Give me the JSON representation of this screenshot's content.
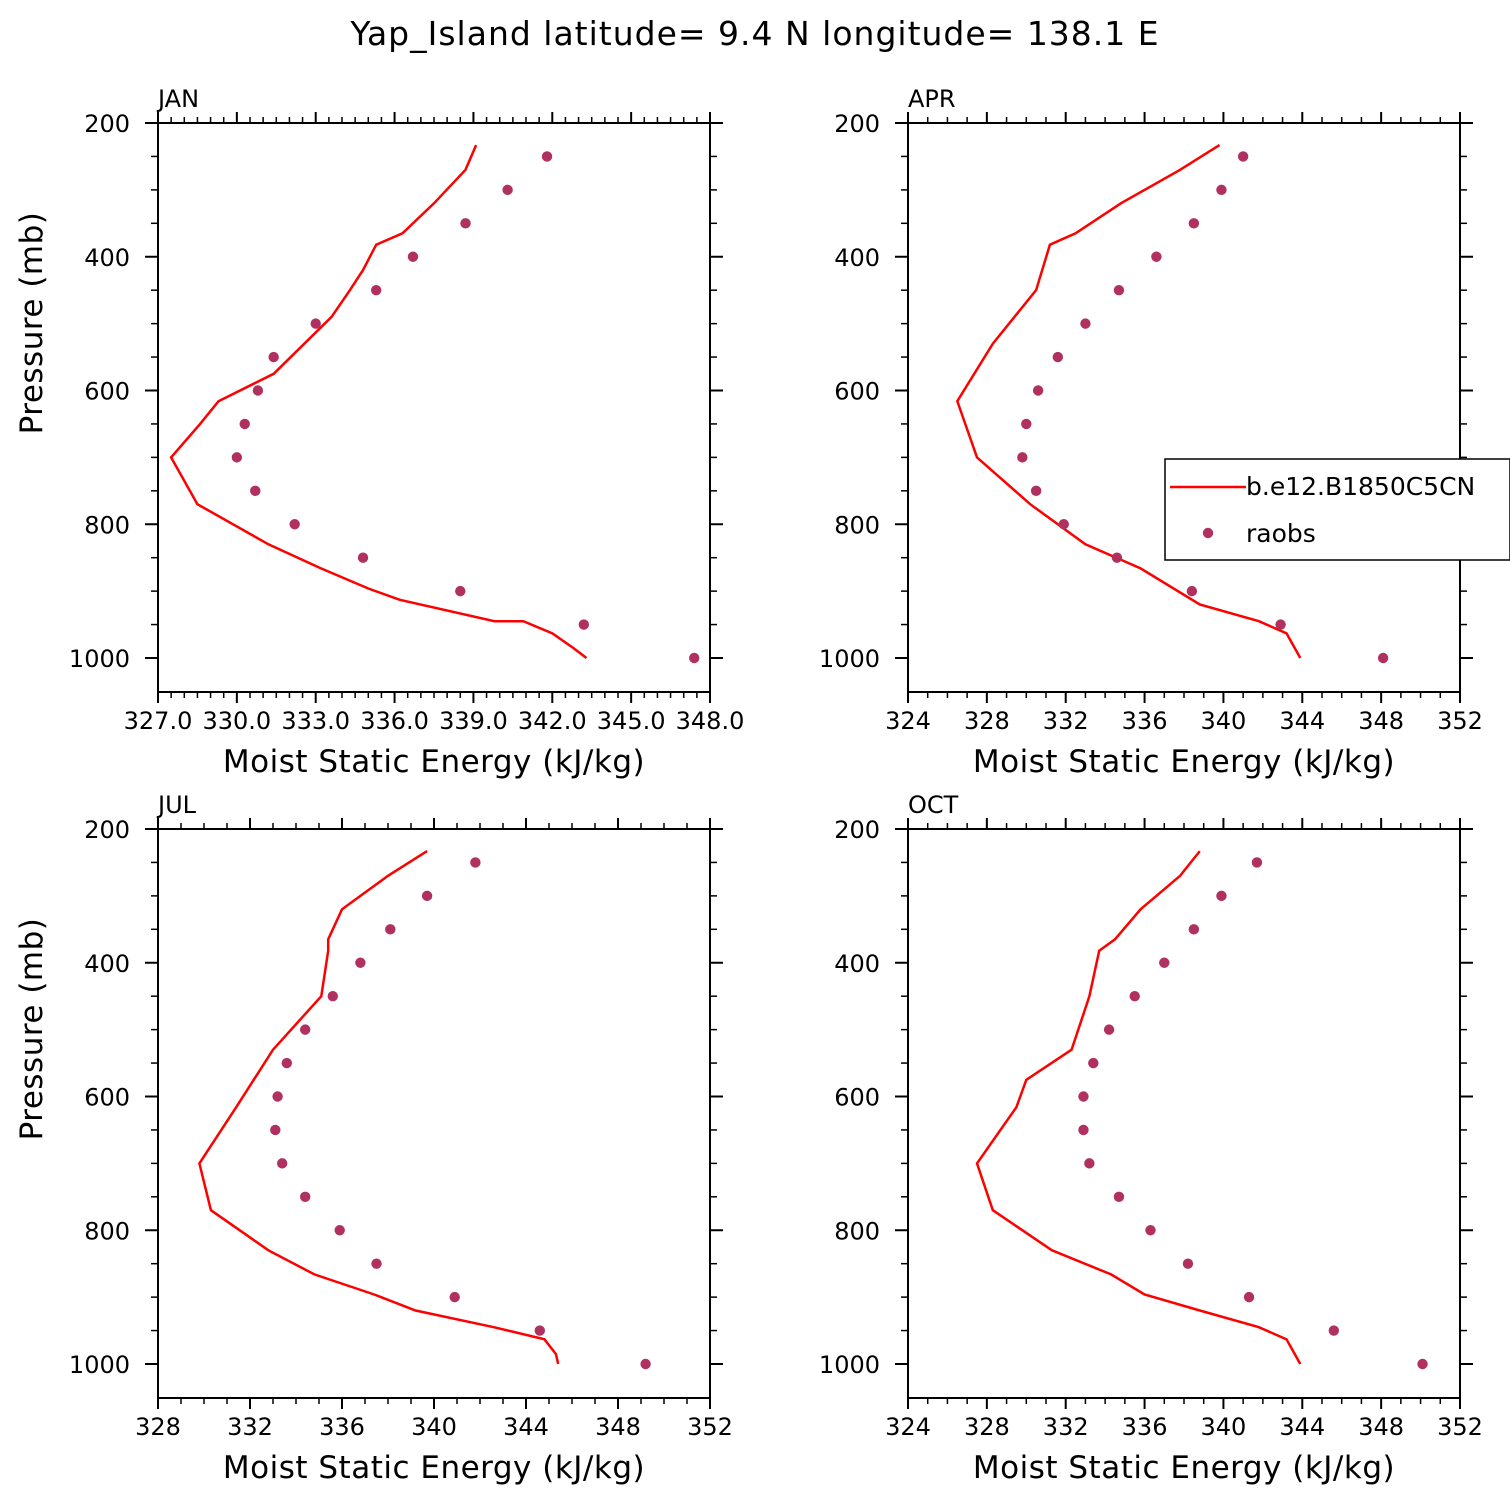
{
  "title": "Yap_Island  latitude= 9.4 N longitude= 138.1 E",
  "colors": {
    "model": "#ff0000",
    "obs": "#b03060"
  },
  "legend": {
    "model_label": "b.e12.B1850C5CN",
    "obs_label": "raobs"
  },
  "chart_data": [
    {
      "type": "line",
      "panel": "JAN",
      "xlabel": "Moist Static Energy (kJ/kg)",
      "ylabel": "Pressure (mb)",
      "xlim": [
        327.0,
        348.0
      ],
      "ylim": [
        200,
        1000
      ],
      "yscale": "inverted",
      "xticks": [
        327.0,
        330.0,
        333.0,
        336.0,
        339.0,
        342.0,
        345.0,
        348.0
      ],
      "xtick_labels": [
        "327.0",
        "330.0",
        "333.0",
        "336.0",
        "339.0",
        "342.0",
        "345.0",
        "348.0"
      ],
      "yticks": [
        200,
        400,
        600,
        800,
        1000
      ],
      "ytick_labels": [
        "200",
        "400",
        "600",
        "800",
        "1000"
      ],
      "series": [
        {
          "name": "b.e12.B1850C5CN",
          "kind": "line",
          "x": [
            339.1,
            338.7,
            337.5,
            336.3,
            335.3,
            334.8,
            334.3,
            333.6,
            331.4,
            329.3,
            328.6,
            327.5,
            328.5,
            331.2,
            333.2,
            335.0,
            336.2,
            339.8,
            340.9,
            342.0,
            342.8,
            343.3
          ],
          "y": [
            233,
            270,
            320,
            365,
            382,
            420,
            450,
            490,
            575,
            616,
            650,
            700,
            770,
            830,
            866,
            896,
            913,
            945,
            945,
            963,
            985,
            1000
          ]
        },
        {
          "name": "raobs",
          "kind": "scatter",
          "x": [
            341.8,
            340.3,
            338.7,
            336.7,
            335.3,
            333.0,
            331.4,
            330.8,
            330.3,
            330.0,
            330.7,
            332.2,
            334.8,
            338.5,
            343.2,
            347.4
          ],
          "y": [
            250,
            300,
            350,
            400,
            450,
            500,
            550,
            600,
            650,
            700,
            750,
            800,
            850,
            900,
            950,
            1000
          ]
        }
      ]
    },
    {
      "type": "line",
      "panel": "APR",
      "xlabel": "Moist Static Energy (kJ/kg)",
      "ylabel": "",
      "xlim": [
        324,
        352
      ],
      "ylim": [
        200,
        1000
      ],
      "yscale": "inverted",
      "xticks": [
        324,
        328,
        332,
        336,
        340,
        344,
        348,
        352
      ],
      "xtick_labels": [
        "324",
        "328",
        "332",
        "336",
        "340",
        "344",
        "348",
        "352"
      ],
      "yticks": [
        200,
        400,
        600,
        800,
        1000
      ],
      "ytick_labels": [
        "200",
        "400",
        "600",
        "800",
        "1000"
      ],
      "series": [
        {
          "name": "b.e12.B1850C5CN",
          "kind": "line",
          "x": [
            339.8,
            337.8,
            334.8,
            332.5,
            331.2,
            330.5,
            328.3,
            326.5,
            327.5,
            330.2,
            333.0,
            335.8,
            338.8,
            341.8,
            343.2,
            343.9
          ],
          "y": [
            233,
            270,
            320,
            365,
            382,
            450,
            530,
            616,
            700,
            770,
            830,
            866,
            920,
            945,
            963,
            1000
          ]
        },
        {
          "name": "raobs",
          "kind": "scatter",
          "x": [
            341.0,
            339.9,
            338.5,
            336.6,
            334.7,
            333.0,
            331.6,
            330.6,
            330.0,
            329.8,
            330.5,
            331.9,
            334.6,
            338.4,
            342.9,
            348.1
          ],
          "y": [
            250,
            300,
            350,
            400,
            450,
            500,
            550,
            600,
            650,
            700,
            750,
            800,
            850,
            900,
            950,
            1000
          ]
        }
      ]
    },
    {
      "type": "line",
      "panel": "JUL",
      "xlabel": "Moist Static Energy (kJ/kg)",
      "ylabel": "Pressure (mb)",
      "xlim": [
        328,
        352
      ],
      "ylim": [
        200,
        1000
      ],
      "yscale": "inverted",
      "xticks": [
        328,
        332,
        336,
        340,
        344,
        348,
        352
      ],
      "xtick_labels": [
        "328",
        "332",
        "336",
        "340",
        "344",
        "348",
        "352"
      ],
      "yticks": [
        200,
        400,
        600,
        800,
        1000
      ],
      "ytick_labels": [
        "200",
        "400",
        "600",
        "800",
        "1000"
      ],
      "series": [
        {
          "name": "b.e12.B1850C5CN",
          "kind": "line",
          "x": [
            339.7,
            338.0,
            336.0,
            335.4,
            335.4,
            335.1,
            333.0,
            331.4,
            329.8,
            330.3,
            332.8,
            334.8,
            337.4,
            339.2,
            342.6,
            344.8,
            345.3,
            345.4
          ],
          "y": [
            233,
            270,
            320,
            365,
            382,
            450,
            530,
            616,
            700,
            770,
            830,
            866,
            896,
            920,
            945,
            963,
            985,
            1000
          ]
        },
        {
          "name": "raobs",
          "kind": "scatter",
          "x": [
            341.8,
            339.7,
            338.1,
            336.8,
            335.6,
            334.4,
            333.6,
            333.2,
            333.1,
            333.4,
            334.4,
            335.9,
            337.5,
            340.9,
            344.6,
            349.2
          ],
          "y": [
            250,
            300,
            350,
            400,
            450,
            500,
            550,
            600,
            650,
            700,
            750,
            800,
            850,
            900,
            950,
            1000
          ]
        }
      ]
    },
    {
      "type": "line",
      "panel": "OCT",
      "xlabel": "Moist Static Energy (kJ/kg)",
      "ylabel": "",
      "xlim": [
        324,
        352
      ],
      "ylim": [
        200,
        1000
      ],
      "yscale": "inverted",
      "xticks": [
        324,
        328,
        332,
        336,
        340,
        344,
        348,
        352
      ],
      "xtick_labels": [
        "324",
        "328",
        "332",
        "336",
        "340",
        "344",
        "348",
        "352"
      ],
      "yticks": [
        200,
        400,
        600,
        800,
        1000
      ],
      "ytick_labels": [
        "200",
        "400",
        "600",
        "800",
        "1000"
      ],
      "series": [
        {
          "name": "b.e12.B1850C5CN",
          "kind": "line",
          "x": [
            338.8,
            337.8,
            335.8,
            334.5,
            333.7,
            333.2,
            332.3,
            330.0,
            329.5,
            327.5,
            328.3,
            331.3,
            334.3,
            336.0,
            338.8,
            341.8,
            343.2,
            343.9
          ],
          "y": [
            233,
            270,
            320,
            365,
            382,
            450,
            530,
            575,
            616,
            700,
            770,
            830,
            866,
            896,
            920,
            945,
            963,
            1000
          ]
        },
        {
          "name": "raobs",
          "kind": "scatter",
          "x": [
            341.7,
            339.9,
            338.5,
            337.0,
            335.5,
            334.2,
            333.4,
            332.9,
            332.9,
            333.2,
            334.7,
            336.3,
            338.2,
            341.3,
            345.6,
            350.1
          ],
          "y": [
            250,
            300,
            350,
            400,
            450,
            500,
            550,
            600,
            650,
            700,
            750,
            800,
            850,
            900,
            950,
            1000
          ]
        }
      ]
    }
  ]
}
